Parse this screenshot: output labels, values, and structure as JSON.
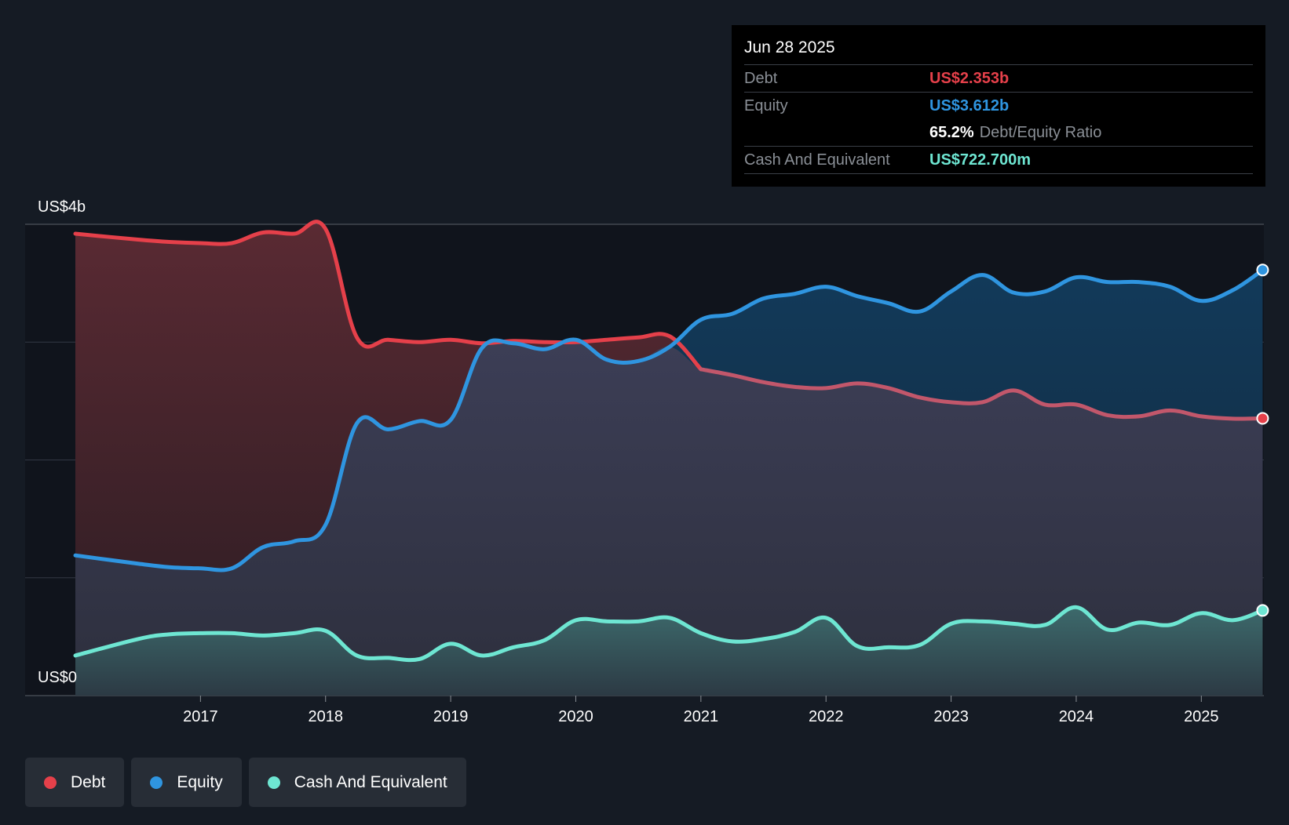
{
  "tooltip": {
    "date": "Jun 28 2025",
    "rows": [
      {
        "label": "Debt",
        "value": "US$2.353b",
        "color": "#e5404a"
      },
      {
        "label": "Equity",
        "value": "US$3.612b",
        "color": "#2f95e0"
      },
      {
        "ratio_value": "65.2%",
        "ratio_label": "Debt/Equity Ratio"
      },
      {
        "label": "Cash And Equivalent",
        "value": "US$722.700m",
        "color": "#6ee6d2"
      }
    ]
  },
  "legend": [
    {
      "label": "Debt",
      "color": "#e5404a"
    },
    {
      "label": "Equity",
      "color": "#2f95e0"
    },
    {
      "label": "Cash And Equivalent",
      "color": "#6ee6d2"
    }
  ],
  "chart_data": {
    "type": "area",
    "y_labels": [
      "US$4b",
      "US$0"
    ],
    "ylim": [
      0,
      4
    ],
    "y_unit": "US$ billions",
    "xlim": [
      2016.0,
      2025.5
    ],
    "x_ticks": [
      2017,
      2018,
      2019,
      2020,
      2021,
      2022,
      2023,
      2024,
      2025
    ],
    "gridlines": [
      1,
      2,
      3,
      4
    ],
    "series": [
      {
        "name": "Debt",
        "color": "#e5404a",
        "points": [
          [
            2016.0,
            3.92
          ],
          [
            2016.5,
            3.87
          ],
          [
            2016.75,
            3.85
          ],
          [
            2017.0,
            3.84
          ],
          [
            2017.25,
            3.84
          ],
          [
            2017.5,
            3.93
          ],
          [
            2017.75,
            3.92
          ],
          [
            2018.0,
            3.96
          ],
          [
            2018.25,
            3.04
          ],
          [
            2018.5,
            3.02
          ],
          [
            2018.75,
            3.0
          ],
          [
            2019.0,
            3.02
          ],
          [
            2019.25,
            2.99
          ],
          [
            2019.5,
            3.01
          ],
          [
            2019.75,
            3.0
          ],
          [
            2020.0,
            3.0
          ],
          [
            2020.25,
            3.02
          ],
          [
            2020.5,
            3.04
          ],
          [
            2020.75,
            3.05
          ],
          [
            2021.0,
            2.77
          ],
          [
            2021.25,
            2.72
          ],
          [
            2021.5,
            2.66
          ],
          [
            2021.75,
            2.62
          ],
          [
            2022.0,
            2.61
          ],
          [
            2022.25,
            2.65
          ],
          [
            2022.5,
            2.61
          ],
          [
            2022.75,
            2.53
          ],
          [
            2023.0,
            2.49
          ],
          [
            2023.25,
            2.49
          ],
          [
            2023.5,
            2.59
          ],
          [
            2023.75,
            2.47
          ],
          [
            2024.0,
            2.47
          ],
          [
            2024.25,
            2.38
          ],
          [
            2024.5,
            2.37
          ],
          [
            2024.75,
            2.42
          ],
          [
            2025.0,
            2.37
          ],
          [
            2025.25,
            2.35
          ],
          [
            2025.49,
            2.353
          ]
        ]
      },
      {
        "name": "Equity",
        "color": "#2f95e0",
        "points": [
          [
            2016.0,
            1.19
          ],
          [
            2016.5,
            1.12
          ],
          [
            2016.75,
            1.09
          ],
          [
            2017.0,
            1.08
          ],
          [
            2017.25,
            1.08
          ],
          [
            2017.5,
            1.26
          ],
          [
            2017.75,
            1.31
          ],
          [
            2018.0,
            1.45
          ],
          [
            2018.25,
            2.31
          ],
          [
            2018.5,
            2.26
          ],
          [
            2018.75,
            2.33
          ],
          [
            2019.0,
            2.34
          ],
          [
            2019.25,
            2.95
          ],
          [
            2019.5,
            2.99
          ],
          [
            2019.75,
            2.94
          ],
          [
            2020.0,
            3.02
          ],
          [
            2020.25,
            2.85
          ],
          [
            2020.5,
            2.84
          ],
          [
            2020.75,
            2.96
          ],
          [
            2021.0,
            3.19
          ],
          [
            2021.25,
            3.24
          ],
          [
            2021.5,
            3.37
          ],
          [
            2021.75,
            3.41
          ],
          [
            2022.0,
            3.47
          ],
          [
            2022.25,
            3.39
          ],
          [
            2022.5,
            3.33
          ],
          [
            2022.75,
            3.26
          ],
          [
            2023.0,
            3.43
          ],
          [
            2023.25,
            3.57
          ],
          [
            2023.5,
            3.42
          ],
          [
            2023.75,
            3.43
          ],
          [
            2024.0,
            3.55
          ],
          [
            2024.25,
            3.51
          ],
          [
            2024.5,
            3.51
          ],
          [
            2024.75,
            3.47
          ],
          [
            2025.0,
            3.35
          ],
          [
            2025.25,
            3.44
          ],
          [
            2025.49,
            3.612
          ]
        ]
      },
      {
        "name": "Cash And Equivalent",
        "color": "#6ee6d2",
        "points": [
          [
            2016.0,
            0.34
          ],
          [
            2016.5,
            0.48
          ],
          [
            2016.75,
            0.52
          ],
          [
            2017.0,
            0.53
          ],
          [
            2017.25,
            0.53
          ],
          [
            2017.5,
            0.51
          ],
          [
            2017.75,
            0.53
          ],
          [
            2018.0,
            0.55
          ],
          [
            2018.25,
            0.34
          ],
          [
            2018.5,
            0.32
          ],
          [
            2018.75,
            0.31
          ],
          [
            2019.0,
            0.44
          ],
          [
            2019.25,
            0.34
          ],
          [
            2019.5,
            0.41
          ],
          [
            2019.75,
            0.47
          ],
          [
            2020.0,
            0.64
          ],
          [
            2020.25,
            0.63
          ],
          [
            2020.5,
            0.63
          ],
          [
            2020.75,
            0.66
          ],
          [
            2021.0,
            0.53
          ],
          [
            2021.25,
            0.46
          ],
          [
            2021.5,
            0.48
          ],
          [
            2021.75,
            0.54
          ],
          [
            2022.0,
            0.66
          ],
          [
            2022.25,
            0.42
          ],
          [
            2022.5,
            0.41
          ],
          [
            2022.75,
            0.43
          ],
          [
            2023.0,
            0.61
          ],
          [
            2023.25,
            0.63
          ],
          [
            2023.5,
            0.61
          ],
          [
            2023.75,
            0.6
          ],
          [
            2024.0,
            0.75
          ],
          [
            2024.25,
            0.56
          ],
          [
            2024.5,
            0.62
          ],
          [
            2024.75,
            0.6
          ],
          [
            2025.0,
            0.7
          ],
          [
            2025.25,
            0.64
          ],
          [
            2025.49,
            0.7227
          ]
        ]
      }
    ]
  }
}
